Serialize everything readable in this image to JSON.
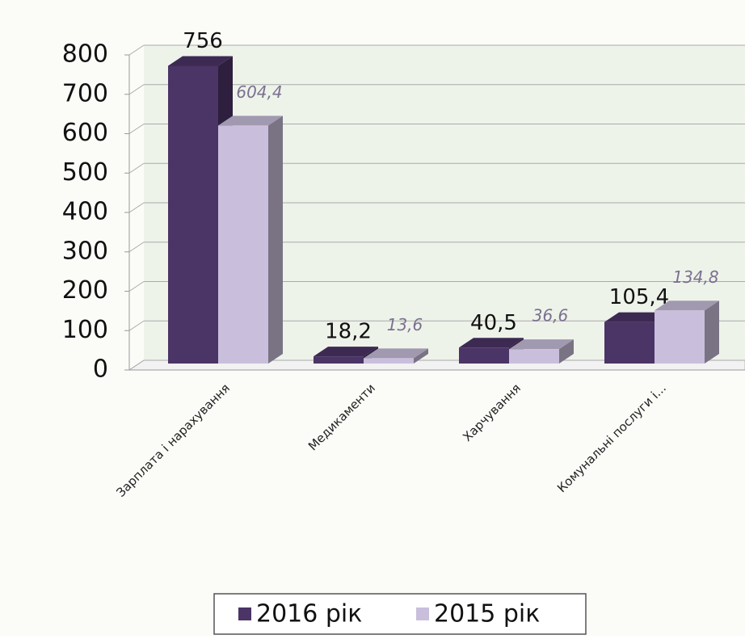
{
  "chart_data": {
    "type": "bar3d",
    "categories": [
      "Зарплата і нарахування",
      "Медикаменти",
      "Харчування",
      "Комунальні послуги і..."
    ],
    "series": [
      {
        "name": "2016 рік",
        "color": "#4b3466",
        "values": [
          756,
          18.2,
          40.5,
          105.4
        ],
        "value_labels": [
          "756",
          "18,2",
          "40,5",
          "105,4"
        ]
      },
      {
        "name": "2015 рік",
        "color": "#c9bfdc",
        "values": [
          604.4,
          13.6,
          36.6,
          134.8
        ],
        "value_labels": [
          "604,4",
          "13,6",
          "36,6",
          "134,8"
        ]
      }
    ],
    "ylim": [
      0,
      800
    ],
    "yticks": [
      0,
      100,
      200,
      300,
      400,
      500,
      600,
      700,
      800
    ],
    "grid": true,
    "legend": "bottom"
  }
}
